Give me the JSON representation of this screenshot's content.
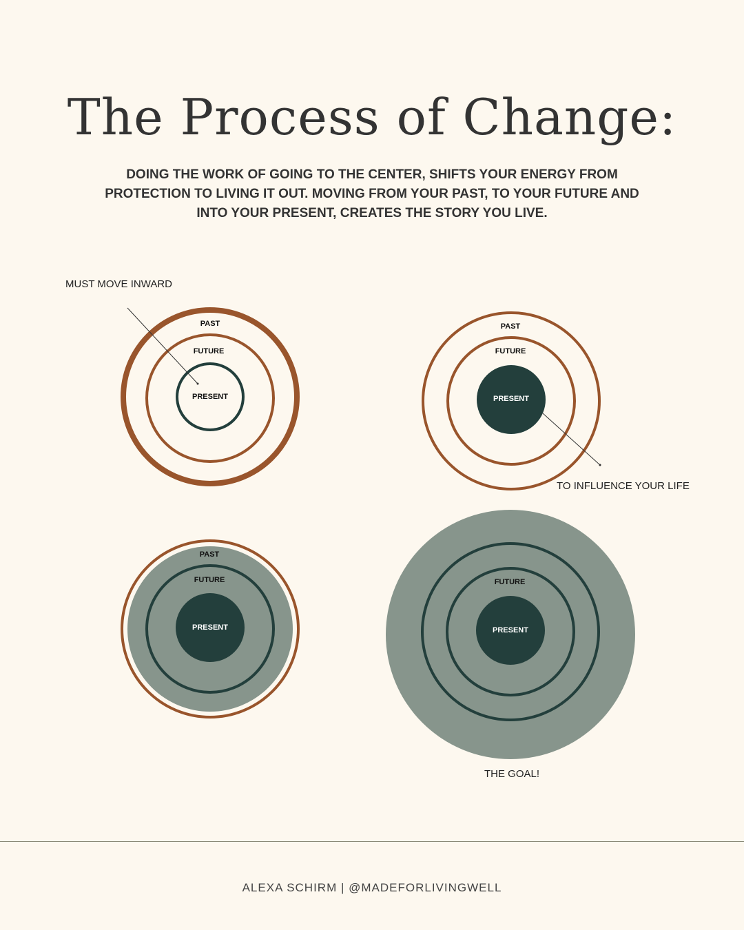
{
  "title": "The Process of Change:",
  "subtitle": "DOING THE WORK OF GOING TO THE CENTER, SHIFTS YOUR ENERGY FROM PROTECTION TO LIVING IT OUT. MOVING FROM YOUR PAST, TO YOUR FUTURE AND INTO YOUR PRESENT, CREATES THE STORY YOU LIVE.",
  "colors": {
    "background": "#fdf8ef",
    "rust": "#99552c",
    "dark_green": "#233f3c",
    "sage": "#87958c"
  },
  "diagrams": {
    "d1": {
      "past": "PAST",
      "future": "FUTURE",
      "present": "PRESENT",
      "note": "MUST MOVE INWARD"
    },
    "d2": {
      "past": "PAST",
      "future": "FUTURE",
      "present": "PRESENT",
      "note": "TO INFLUENCE YOUR LIFE"
    },
    "d3": {
      "past": "PAST",
      "future": "FUTURE",
      "present": "PRESENT"
    },
    "d4": {
      "future": "FUTURE",
      "present": "PRESENT",
      "note": "THE GOAL!"
    }
  },
  "footer": "ALEXA SCHIRM | @MADEFORLIVINGWELL"
}
